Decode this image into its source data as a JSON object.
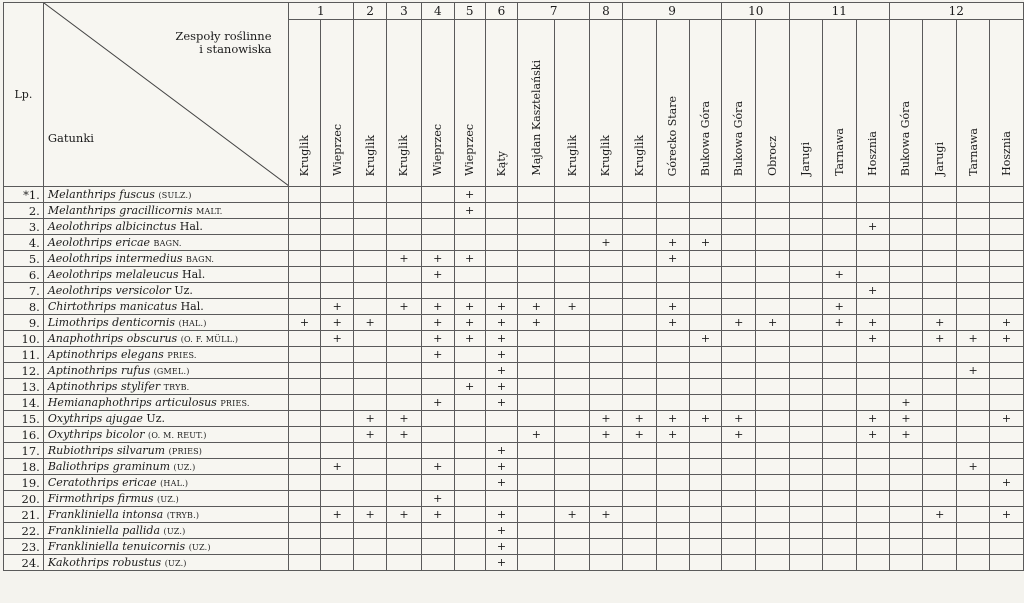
{
  "header": {
    "lp": "Lp.",
    "communities_line1": "Zespoły roślinne",
    "communities_line2": "i stanowiska",
    "species": "Gatunki"
  },
  "groups": [
    {
      "label": "1",
      "sites": [
        "Kruglik",
        "Wieprzec"
      ]
    },
    {
      "label": "2",
      "sites": [
        "Kruglik"
      ]
    },
    {
      "label": "3",
      "sites": [
        "Kruglik"
      ]
    },
    {
      "label": "4",
      "sites": [
        "Wieprzec"
      ]
    },
    {
      "label": "5",
      "sites": [
        "Wieprzec"
      ]
    },
    {
      "label": "6",
      "sites": [
        "Kąty"
      ]
    },
    {
      "label": "7",
      "sites": [
        "Majdan Kasztelański",
        "Kruglik"
      ]
    },
    {
      "label": "8",
      "sites": [
        "Kruglik"
      ]
    },
    {
      "label": "9",
      "sites": [
        "Kruglik",
        "Górecko Stare",
        "Bukowa Góra"
      ]
    },
    {
      "label": "10",
      "sites": [
        "Bukowa Góra",
        "Obrocz"
      ]
    },
    {
      "label": "11",
      "sites": [
        "Jarugi",
        "Tarnawa",
        "Hosznia"
      ]
    },
    {
      "label": "12",
      "sites": [
        "Bukowa Góra",
        "Jarugi",
        "Tarnawa",
        "Hosznia"
      ]
    }
  ],
  "plus_symbol": "+",
  "rows": [
    {
      "lp": "*1.",
      "name": "Melanthrips fuscus",
      "author": "(Sulz.)",
      "cols": [
        5
      ]
    },
    {
      "lp": "2.",
      "name": "Melanthrips gracillicornis",
      "author": "Malt.",
      "cols": [
        5
      ]
    },
    {
      "lp": "3.",
      "name": "Aeolothrips albicinctus",
      "author": "Hal.",
      "cols": [
        17
      ]
    },
    {
      "lp": "4.",
      "name": "Aeolothrips ericae",
      "author": "Bagn.",
      "cols": [
        9,
        11,
        12
      ]
    },
    {
      "lp": "5.",
      "name": "Aeolothrips intermedius",
      "author": "Bagn.",
      "cols": [
        3,
        4,
        5,
        11
      ]
    },
    {
      "lp": "6.",
      "name": "Aeolothrips melaleucus",
      "author": "Hal.",
      "cols": [
        4,
        16
      ]
    },
    {
      "lp": "7.",
      "name": "Aeolothrips versicolor",
      "author": "Uz.",
      "cols": [
        17
      ]
    },
    {
      "lp": "8.",
      "name": "Chirtothrips manicatus",
      "author": "Hal.",
      "cols": [
        1,
        3,
        4,
        5,
        6,
        7,
        8,
        11,
        16
      ]
    },
    {
      "lp": "9.",
      "name": "Limothrips denticornis",
      "author": "(Hal.)",
      "cols": [
        0,
        1,
        2,
        4,
        5,
        6,
        7,
        11,
        13,
        14,
        16,
        17,
        19,
        21
      ]
    },
    {
      "lp": "10.",
      "name": "Anaphothrips obscurus",
      "author": "(O. F. Müll.)",
      "cols": [
        1,
        4,
        5,
        6,
        12,
        17,
        19,
        20,
        21
      ]
    },
    {
      "lp": "11.",
      "name": "Aptinothrips elegans",
      "author": "Pries.",
      "cols": [
        4,
        6
      ]
    },
    {
      "lp": "12.",
      "name": "Aptinothrips rufus",
      "author": "(Gmel.)",
      "cols": [
        6,
        20
      ]
    },
    {
      "lp": "13.",
      "name": "Aptinothrips stylifer",
      "author": "Tryb.",
      "cols": [
        5,
        6
      ]
    },
    {
      "lp": "14.",
      "name": "Hemianaphothrips articulosus",
      "author": "Pries.",
      "cols": [
        4,
        6,
        18
      ]
    },
    {
      "lp": "15.",
      "name": "Oxythrips ajugae",
      "author": "Uz.",
      "cols": [
        2,
        3,
        9,
        10,
        11,
        12,
        13,
        17,
        18,
        21
      ]
    },
    {
      "lp": "16.",
      "name": "Oxythrips bicolor",
      "author": "(O. M. Reut.)",
      "cols": [
        2,
        3,
        7,
        9,
        10,
        11,
        13,
        17,
        18
      ]
    },
    {
      "lp": "17.",
      "name": "Rubiothrips silvarum",
      "author": "(Pries)",
      "cols": [
        6
      ]
    },
    {
      "lp": "18.",
      "name": "Baliothrips graminum",
      "author": "(Uz.)",
      "cols": [
        1,
        4,
        6,
        20
      ]
    },
    {
      "lp": "19.",
      "name": "Ceratothrips ericae",
      "author": "(Hal.)",
      "cols": [
        6,
        21
      ]
    },
    {
      "lp": "20.",
      "name": "Firmothrips firmus",
      "author": "(Uz.)",
      "cols": [
        4
      ]
    },
    {
      "lp": "21.",
      "name": "Frankliniella intonsa",
      "author": "(Tryb.)",
      "cols": [
        1,
        2,
        3,
        4,
        6,
        8,
        9,
        19,
        21
      ]
    },
    {
      "lp": "22.",
      "name": "Frankliniella pallida",
      "author": "(Uz.)",
      "cols": [
        6
      ]
    },
    {
      "lp": "23.",
      "name": "Frankliniella tenuicornis",
      "author": "(Uz.)",
      "cols": [
        6
      ]
    },
    {
      "lp": "24.",
      "name": "Kakothrips robustus",
      "author": "(Uz.)",
      "cols": [
        6
      ]
    }
  ]
}
